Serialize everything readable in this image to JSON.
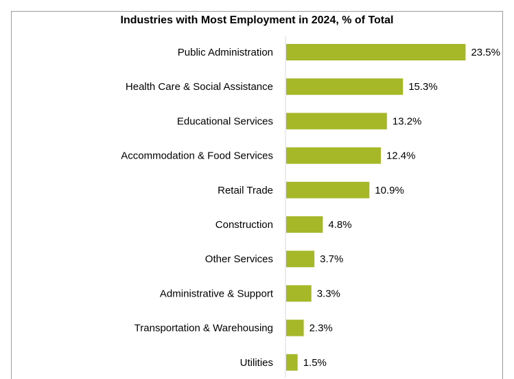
{
  "chart_data": {
    "type": "bar",
    "orientation": "horizontal",
    "title": "Industries with Most Employment in 2024, % of Total",
    "categories": [
      "Public Administration",
      "Health Care & Social Assistance",
      "Educational Services",
      "Accommodation & Food Services",
      "Retail Trade",
      "Construction",
      "Other Services",
      "Administrative & Support",
      "Transportation & Warehousing",
      "Utilities"
    ],
    "values": [
      23.5,
      15.3,
      13.2,
      12.4,
      10.9,
      4.8,
      3.7,
      3.3,
      2.3,
      1.5
    ],
    "data_labels": [
      "23.5%",
      "15.3%",
      "13.2%",
      "12.4%",
      "10.9%",
      "4.8%",
      "3.7%",
      "3.3%",
      "2.3%",
      "1.5%"
    ],
    "unit": "%",
    "bar_color": "#a6b728",
    "axis_color": "#d9d9d9",
    "xlim": [
      0,
      24
    ],
    "grid": false,
    "legend": "none"
  }
}
